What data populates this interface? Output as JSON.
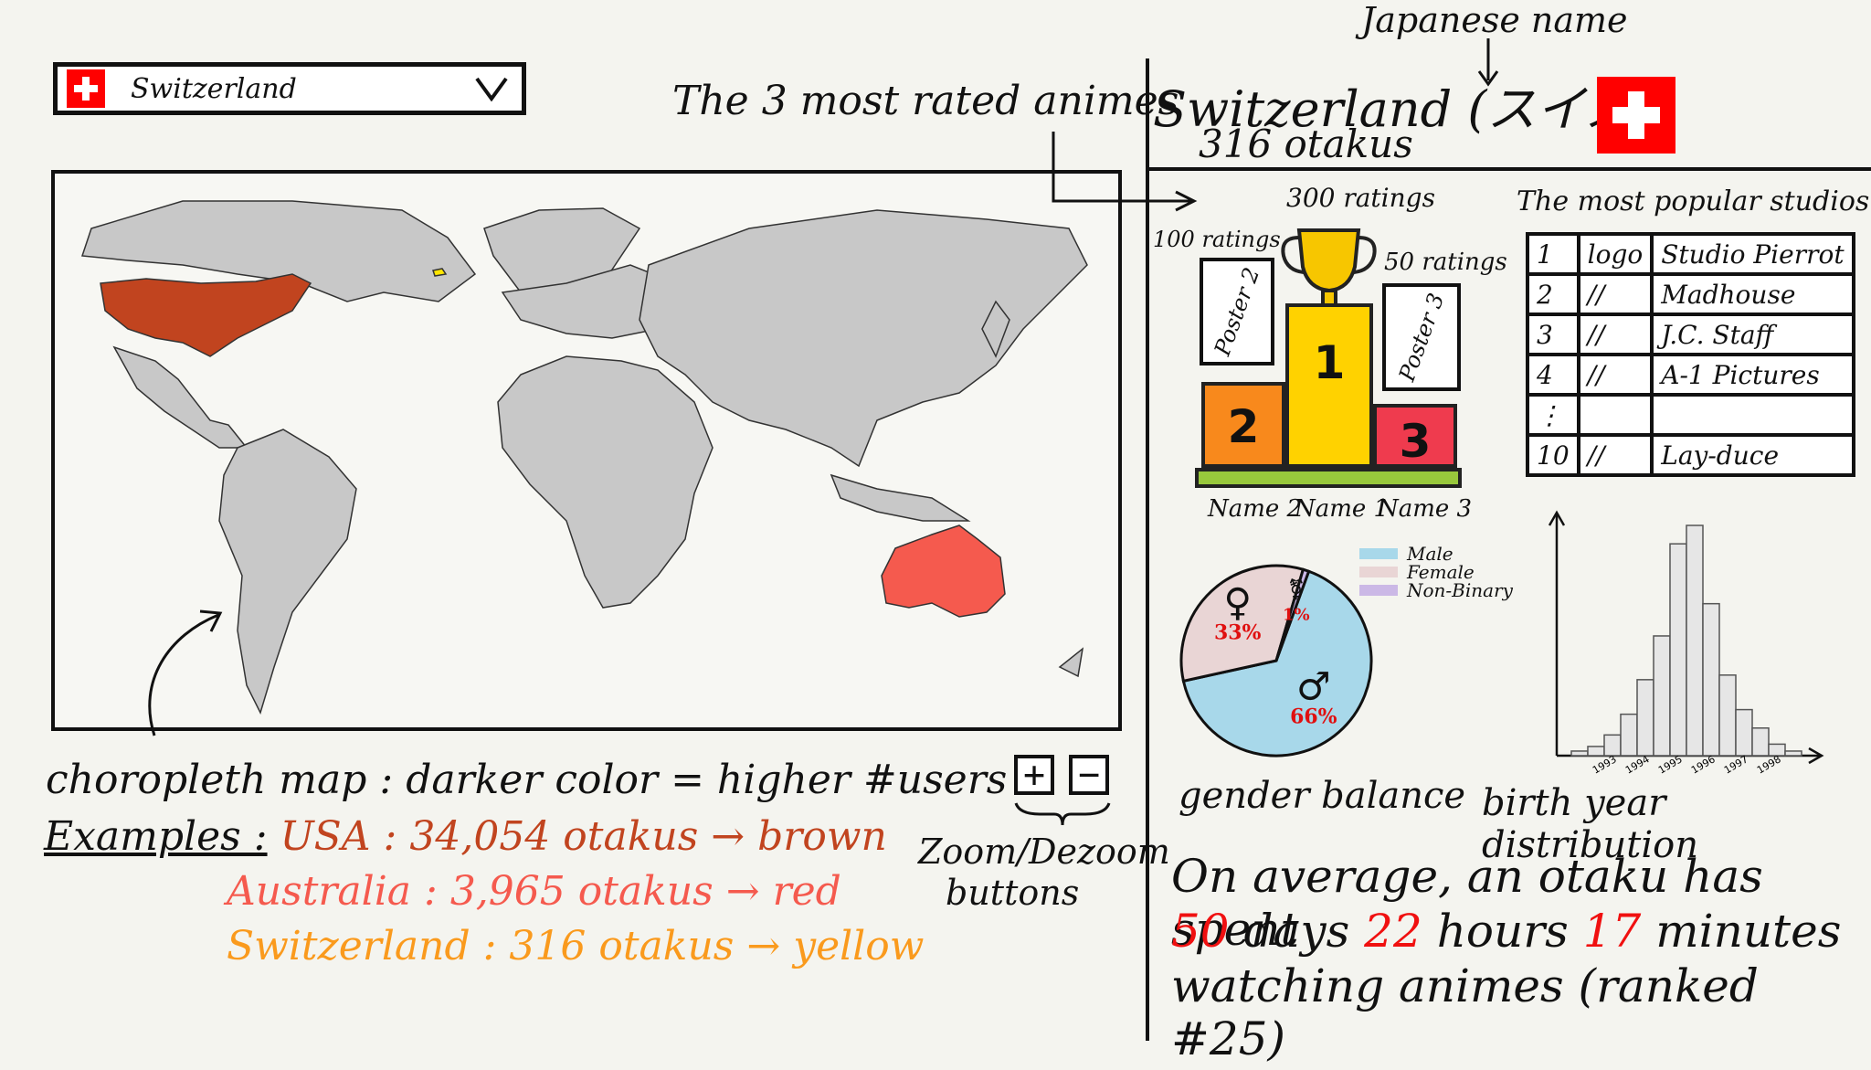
{
  "selector": {
    "value": "Switzerland",
    "flag_icon": "swiss-flag-icon",
    "chevron_icon": "chevron-down-icon"
  },
  "map": {
    "colors": {
      "usa": "#c1441f",
      "australia": "#f55a4e",
      "switzerland": "#ffe600",
      "default": "#c8c8c8"
    }
  },
  "annotations": {
    "map_caption": "choropleth map : darker color = higher #users",
    "examples_label": "Examples :",
    "example_usa": "USA : 34,054 otakus → brown",
    "example_australia": "Australia : 3,965 otakus → red",
    "example_switzerland": "Switzerland : 316 otakus → yellow",
    "zoom_caption_1": "Zoom/Dezoom",
    "zoom_caption_2": "buttons",
    "top_animes_caption": "The 3 most rated animes",
    "japanese_name_caption": "Japanese name"
  },
  "zoom": {
    "in_label": "+",
    "out_label": "−"
  },
  "country_panel": {
    "title": "Switzerland (スイス)",
    "otakus": "316 otakus",
    "flag_icon": "swiss-flag-icon"
  },
  "podium": {
    "rating_1": "300 ratings",
    "rating_2": "100 ratings",
    "rating_3": "50 ratings",
    "poster_2": "Poster 2",
    "poster_3": "Poster 3",
    "rank_1": "1",
    "rank_2": "2",
    "rank_3": "3",
    "name_1": "Name 1",
    "name_2": "Name 2",
    "name_3": "Name 3",
    "trophy_icon": "trophy-icon"
  },
  "studios": {
    "title": "The most popular studios",
    "rows": [
      {
        "rank": "1",
        "logo": "logo",
        "name": "Studio Pierrot"
      },
      {
        "rank": "2",
        "logo": "//",
        "name": "Madhouse"
      },
      {
        "rank": "3",
        "logo": "//",
        "name": "J.C. Staff"
      },
      {
        "rank": "4",
        "logo": "//",
        "name": "A-1 Pictures"
      },
      {
        "rank": "⋮",
        "logo": "",
        "name": ""
      },
      {
        "rank": "10",
        "logo": "//",
        "name": "Lay-duce"
      }
    ]
  },
  "gender": {
    "legend": [
      "Male",
      "Female",
      "Non-Binary"
    ],
    "colors": [
      "#a8d8ea",
      "#e9d5d5",
      "#cbb8e6"
    ],
    "values": [
      66,
      33,
      1
    ],
    "labels": [
      "66%",
      "33%",
      "1%"
    ],
    "caption": "gender balance"
  },
  "birth": {
    "caption": "birth year distribution",
    "ticks": [
      "1993",
      "1994",
      "1995",
      "1996",
      "1997",
      "1998"
    ]
  },
  "average": {
    "line1": "On average, an otaku has spent",
    "days_num": "50",
    "days_label": "days",
    "hours_num": "22",
    "hours_label": "hours",
    "minutes_num": "17",
    "minutes_label": "minutes",
    "line3": "watching animes (ranked #25)"
  }
}
